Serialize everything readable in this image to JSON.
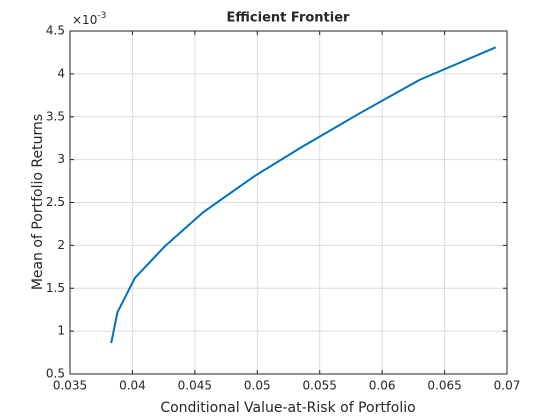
{
  "chart_data": {
    "type": "line",
    "title": "Efficient Frontier",
    "xlabel": "Conditional Value-at-Risk of Portfolio",
    "ylabel": "Mean of Portfolio Returns",
    "y_multiplier": {
      "base": "×10",
      "exponent": "-3"
    },
    "x": [
      0.0383,
      0.0388,
      0.0402,
      0.0426,
      0.0457,
      0.0498,
      0.0536,
      0.0582,
      0.063,
      0.0691
    ],
    "series": [
      {
        "color": "#0072bd",
        "values": [
          0.86,
          1.22,
          1.62,
          1.99,
          2.39,
          2.81,
          3.15,
          3.54,
          3.93,
          4.31
        ]
      }
    ],
    "xlim": [
      0.035,
      0.07
    ],
    "xticks": [
      0.035,
      0.04,
      0.045,
      0.05,
      0.055,
      0.06,
      0.065,
      0.07
    ],
    "ylim": [
      0.5,
      4.5
    ],
    "yticks": [
      0.5,
      1,
      1.5,
      2,
      2.5,
      3,
      3.5,
      4,
      4.5
    ],
    "grid": true
  }
}
